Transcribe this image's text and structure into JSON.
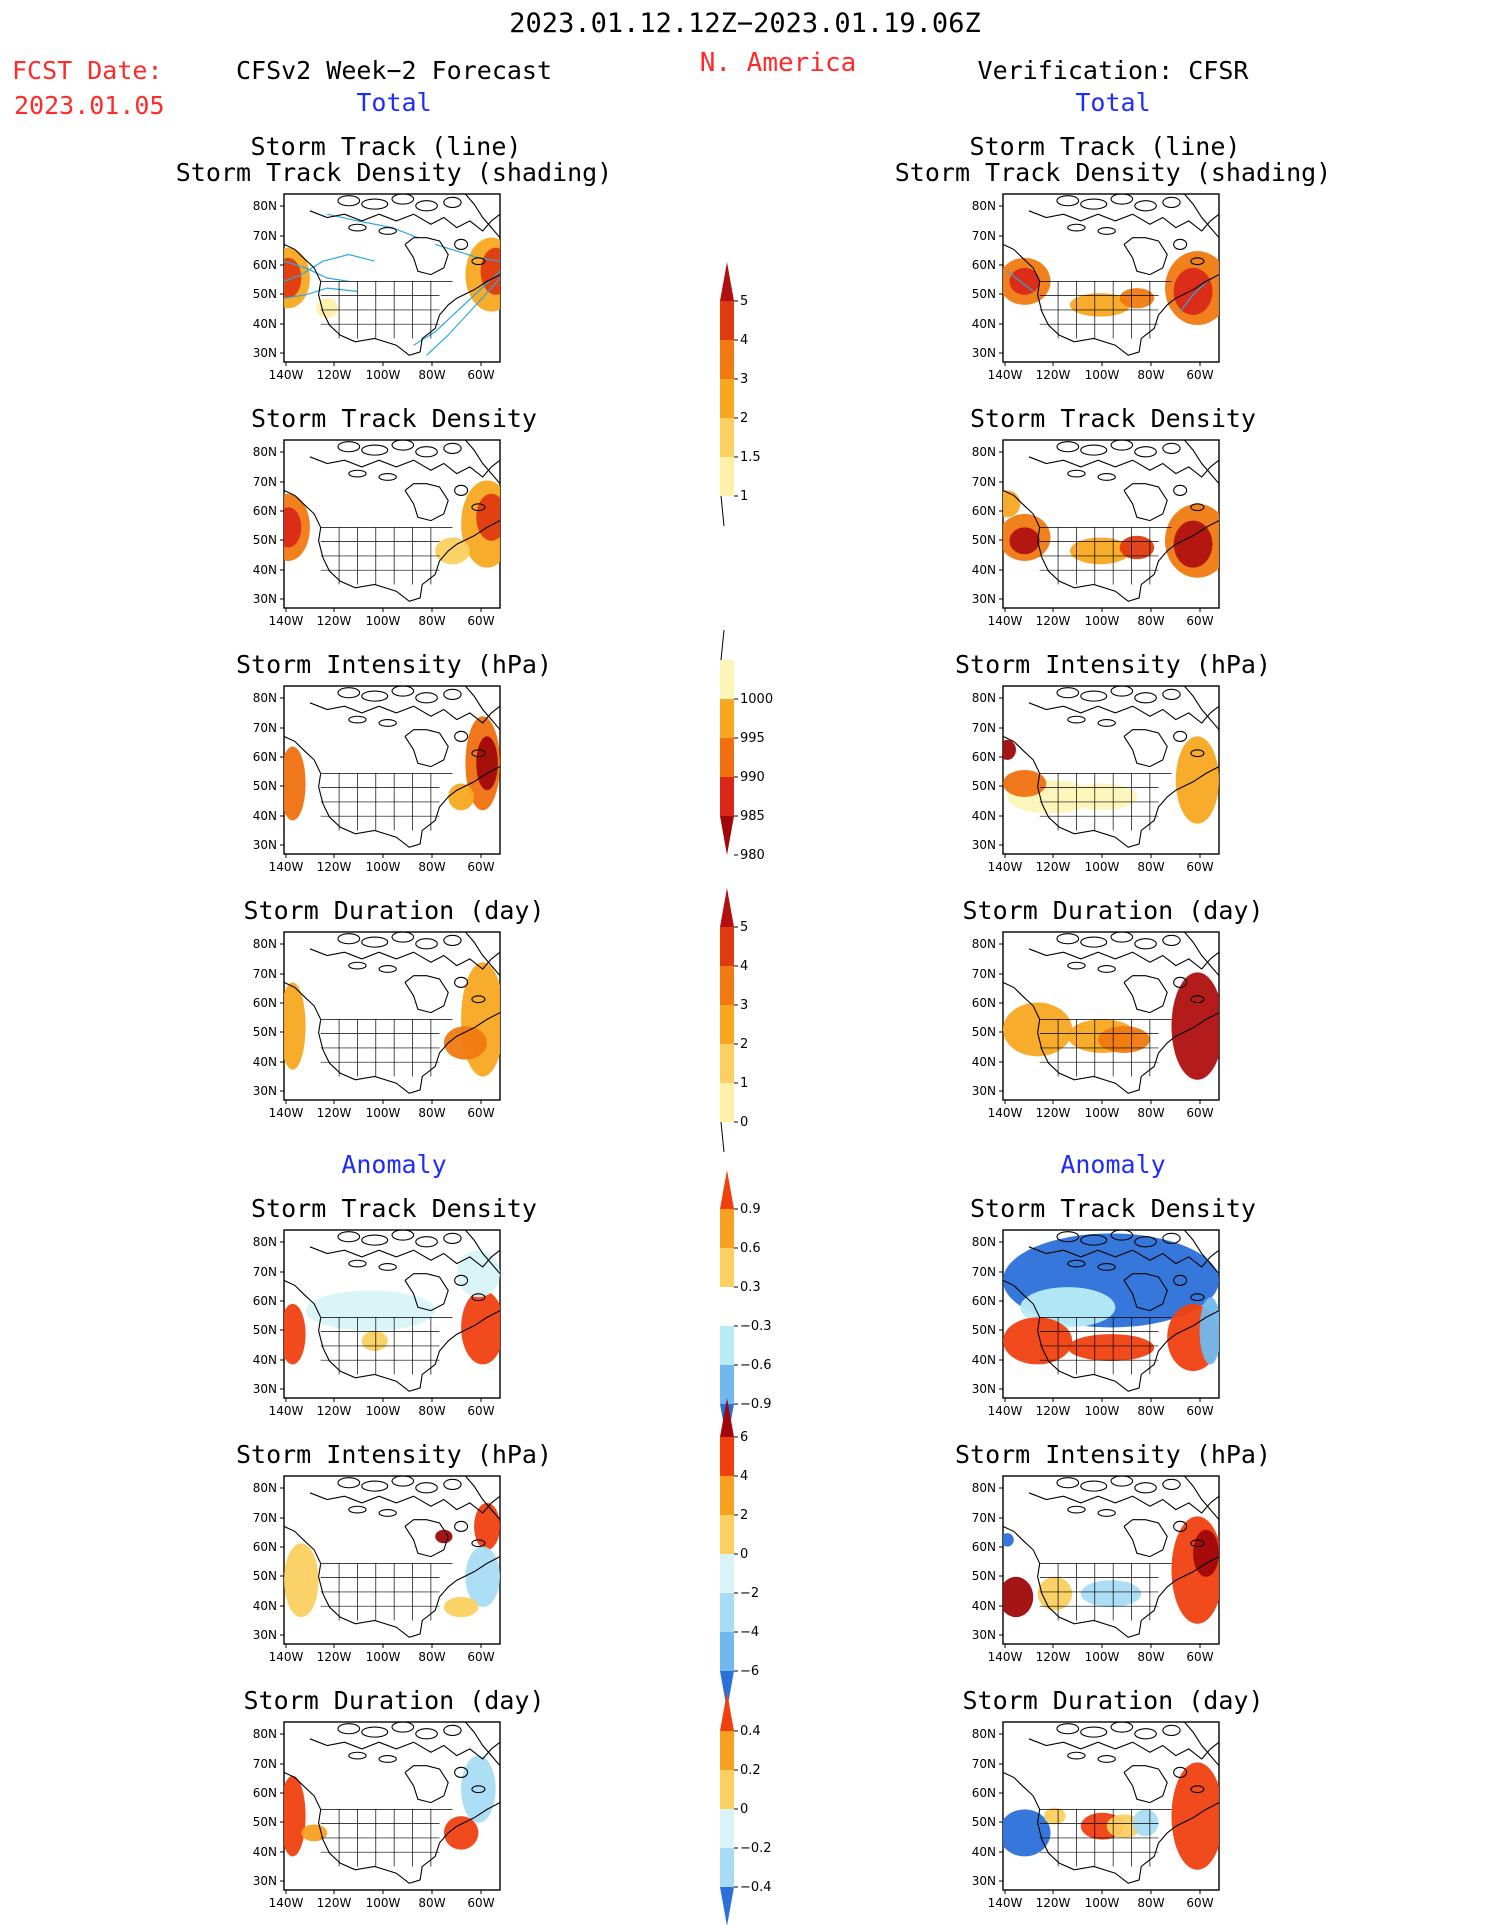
{
  "header": {
    "period": "2023.01.12.12Z−2023.01.19.06Z",
    "region": "N. America",
    "fcst_date_label": "FCST Date:",
    "fcst_date_value": "2023.01.05",
    "forecast_title": "CFSv2 Week−2 Forecast",
    "verification_title": "Verification: CFSR",
    "total_label_left": "Total",
    "total_label_right": "Total",
    "anomaly_label_left": "Anomaly",
    "anomaly_label_right": "Anomaly"
  },
  "panel_titles": {
    "track_line": "Storm Track (line)",
    "track_shading": "Storm Track Density (shading)",
    "density": "Storm Track Density",
    "intensity": "Storm Intensity (hPa)",
    "duration": "Storm Duration (day)"
  },
  "axes": {
    "lat_ticks": [
      "80N",
      "70N",
      "60N",
      "50N",
      "40N",
      "30N"
    ],
    "lon_ticks": [
      "140W",
      "120W",
      "100W",
      "80W",
      "60W"
    ]
  },
  "colorbars": [
    {
      "id": "density-total",
      "labels": [
        "5",
        "4",
        "3",
        "2",
        "1.5",
        "1"
      ],
      "colors": [
        "#b01010",
        "#e03a10",
        "#f07a10",
        "#f8a820",
        "#fbd060",
        "#fdf0a8"
      ]
    },
    {
      "id": "intensity-total",
      "labels": [
        "1000",
        "995",
        "990",
        "985",
        "980"
      ],
      "colors": [
        "#fdf5b8",
        "#f8a820",
        "#f07010",
        "#d92818",
        "#a00808"
      ]
    },
    {
      "id": "duration-total",
      "labels": [
        "5",
        "4",
        "3",
        "2",
        "1",
        "0"
      ],
      "colors": [
        "#b01010",
        "#e03a10",
        "#f07a10",
        "#f8a820",
        "#fbd060",
        "#fdf0a8"
      ]
    },
    {
      "id": "density-anom",
      "labels": [
        "0.9",
        "0.6",
        "0.3",
        "−0.3",
        "−0.6",
        "−0.9"
      ],
      "colors": [
        "#f04010",
        "#f8a020",
        "#fbd060",
        "#ffffff",
        "#b8ecf5",
        "#70b8ee",
        "#2a70d8"
      ]
    },
    {
      "id": "intensity-anom",
      "labels": [
        "6",
        "4",
        "2",
        "0",
        "−2",
        "−4",
        "−6"
      ],
      "colors": [
        "#a00808",
        "#f04010",
        "#f8a020",
        "#fbd060",
        "#d8f4f8",
        "#a8dcf5",
        "#70b8ee",
        "#2a70d8"
      ]
    },
    {
      "id": "duration-anom",
      "labels": [
        "0.4",
        "0.2",
        "0",
        "−0.2",
        "−0.4"
      ],
      "colors": [
        "#f04010",
        "#f8a020",
        "#fbd060",
        "#d8f4f8",
        "#a8dcf5",
        "#2a70d8"
      ]
    }
  ],
  "colors": {
    "title_red": "#ff2a2a",
    "subtitle_blue": "#1f2cff",
    "track_line": "#2aa8e0"
  }
}
